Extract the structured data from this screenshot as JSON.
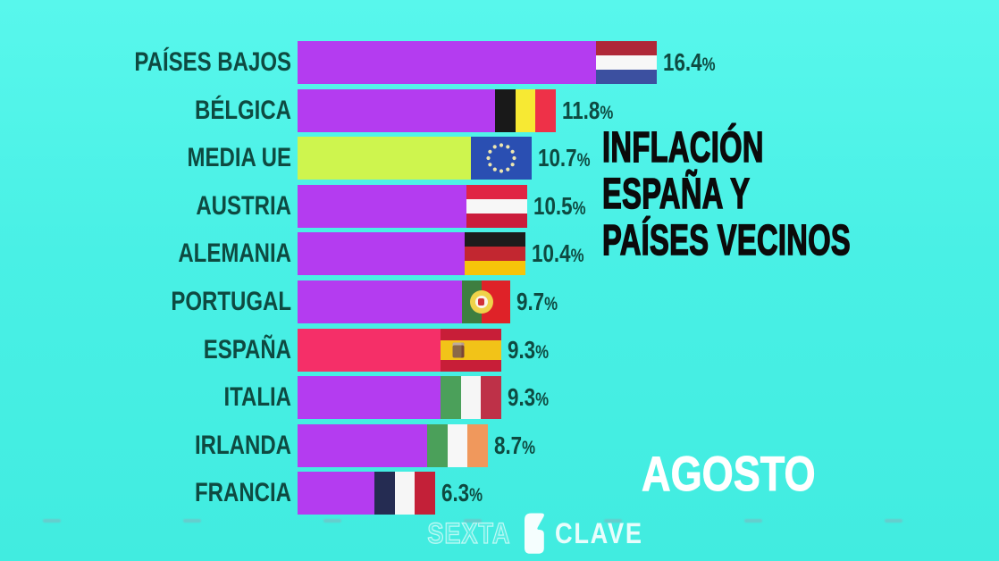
{
  "app": {
    "name": "sexta-clave-inflation-graphic"
  },
  "title": {
    "lines": [
      "INFLACIÓN",
      "ESPAÑA Y",
      "PAÍSES VECINOS"
    ]
  },
  "period_label": "AGOSTO",
  "watermark": {
    "sexta": "SEXTA",
    "clave": "CLAVE",
    "logo_icon": "lasexta-6-icon"
  },
  "colors": {
    "background_top": "#58F7EC",
    "background_bottom": "#41ECE0",
    "bar_purple": "#B43CF0",
    "bar_yellow_green": "#CEF54E",
    "bar_red": "#F52F68",
    "label_text": "#0E4A41",
    "title_text": "#0B0B0B",
    "period_text": "#FFFFFF"
  },
  "chart_data": {
    "type": "bar",
    "orientation": "horizontal",
    "value_unit": "%",
    "xlim": [
      0,
      17
    ],
    "legend": "none",
    "grid": "off",
    "categories": [
      "PAÍSES BAJOS",
      "BÉLGICA",
      "MEDIA UE",
      "AUSTRIA",
      "ALEMANIA",
      "PORTUGAL",
      "ESPAÑA",
      "ITALIA",
      "IRLANDA",
      "FRANCIA"
    ],
    "values": [
      16.4,
      11.8,
      10.7,
      10.5,
      10.4,
      9.7,
      9.3,
      9.3,
      8.7,
      6.3
    ],
    "rows": [
      {
        "label": "PAÍSES BAJOS",
        "value": 16.4,
        "value_label": "16.4%",
        "bar_color": "#B43CF0",
        "flag": {
          "name": "netherlands-flag",
          "type": "h",
          "emblem": null,
          "stripes": [
            {
              "color": "#AF2838",
              "size": 1
            },
            {
              "color": "#F7F7F7",
              "size": 1
            },
            {
              "color": "#3C50A0",
              "size": 1
            }
          ]
        }
      },
      {
        "label": "BÉLGICA",
        "value": 11.8,
        "value_label": "11.8%",
        "bar_color": "#B43CF0",
        "flag": {
          "name": "belgium-flag",
          "type": "v",
          "emblem": null,
          "stripes": [
            {
              "color": "#191919",
              "size": 1
            },
            {
              "color": "#F7E933",
              "size": 1
            },
            {
              "color": "#EE3148",
              "size": 1
            }
          ]
        }
      },
      {
        "label": "MEDIA UE",
        "value": 10.7,
        "value_label": "10.7%",
        "bar_color": "#CEF54E",
        "flag": {
          "name": "european-union-flag",
          "type": "v",
          "emblem": "eu-stars",
          "stripes": [
            {
              "color": "#2A4FB2",
              "size": 1
            }
          ]
        }
      },
      {
        "label": "AUSTRIA",
        "value": 10.5,
        "value_label": "10.5%",
        "bar_color": "#B43CF0",
        "flag": {
          "name": "austria-flag",
          "type": "h",
          "emblem": null,
          "stripes": [
            {
              "color": "#E02444",
              "size": 1
            },
            {
              "color": "#F7F7F7",
              "size": 1
            },
            {
              "color": "#CB1C3C",
              "size": 1
            }
          ]
        }
      },
      {
        "label": "ALEMANIA",
        "value": 10.4,
        "value_label": "10.4%",
        "bar_color": "#B43CF0",
        "flag": {
          "name": "germany-flag",
          "type": "h",
          "emblem": null,
          "stripes": [
            {
              "color": "#1C1C1C",
              "size": 1
            },
            {
              "color": "#C22730",
              "size": 1
            },
            {
              "color": "#F6C40A",
              "size": 1
            }
          ]
        }
      },
      {
        "label": "PORTUGAL",
        "value": 9.7,
        "value_label": "9.7%",
        "bar_color": "#B43CF0",
        "flag": {
          "name": "portugal-flag",
          "type": "v",
          "emblem": "portugal-sphere",
          "stripes": [
            {
              "color": "#3E7E40",
              "size": 0.4
            },
            {
              "color": "#DF2228",
              "size": 0.6
            }
          ]
        }
      },
      {
        "label": "ESPAÑA",
        "value": 9.3,
        "value_label": "9.3%",
        "bar_color": "#F52F68",
        "flag": {
          "name": "spain-flag",
          "type": "h",
          "emblem": "spain-arms",
          "stripes": [
            {
              "color": "#C81E38",
              "size": 0.27
            },
            {
              "color": "#F2C318",
              "size": 0.46
            },
            {
              "color": "#C81E38",
              "size": 0.27
            }
          ]
        }
      },
      {
        "label": "ITALIA",
        "value": 9.3,
        "value_label": "9.3%",
        "bar_color": "#B43CF0",
        "flag": {
          "name": "italy-flag",
          "type": "v",
          "emblem": null,
          "stripes": [
            {
              "color": "#4BA05A",
              "size": 1
            },
            {
              "color": "#F6F6F6",
              "size": 1
            },
            {
              "color": "#BE3148",
              "size": 1
            }
          ]
        }
      },
      {
        "label": "IRLANDA",
        "value": 8.7,
        "value_label": "8.7%",
        "bar_color": "#B43CF0",
        "flag": {
          "name": "ireland-flag",
          "type": "v",
          "emblem": null,
          "stripes": [
            {
              "color": "#4BA05A",
              "size": 1
            },
            {
              "color": "#F7F7F7",
              "size": 1
            },
            {
              "color": "#F0985C",
              "size": 1
            }
          ]
        }
      },
      {
        "label": "FRANCIA",
        "value": 6.3,
        "value_label": "6.3%",
        "bar_color": "#B43CF0",
        "flag": {
          "name": "france-flag",
          "type": "v",
          "emblem": null,
          "stripes": [
            {
              "color": "#252C52",
              "size": 1
            },
            {
              "color": "#F6F6F6",
              "size": 1
            },
            {
              "color": "#C32038",
              "size": 1
            }
          ]
        }
      }
    ]
  }
}
